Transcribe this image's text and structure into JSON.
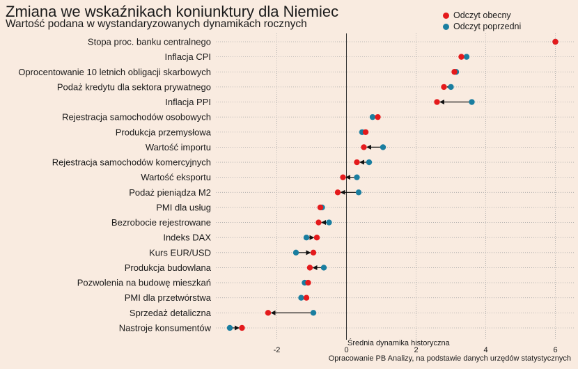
{
  "chart_data": {
    "type": "dot",
    "title": "Zmiana we wskaźnikach koniunktury dla Niemiec",
    "subtitle": "Wartość podana w wystandaryzowanych dynamikach rocznych",
    "caption": "Opracowanie PB Analizy, na podstawie danych urzędów statystycznych",
    "reference_line_label": "Średnia dynamika historyczna",
    "reference_line_value": 0,
    "x_ticks": [
      -2,
      0,
      2,
      4,
      6
    ],
    "xlim": [
      -3.6,
      6.25
    ],
    "grid": true,
    "legend_position": "top-right",
    "categories": [
      "Stopa proc. banku centralnego",
      "Inflacja CPI",
      "Oprocentowanie 10 letnich obligacji skarbowych",
      "Podaż kredytu dla sektora prywatnego",
      "Inflacja PPI",
      "Rejestracja samochodów osobowych",
      "Produkcja przemysłowa",
      "Wartość importu",
      "Rejestracja samochodów komercyjnych",
      "Wartość eksportu",
      "Podaż pieniądza M2",
      "PMI dla usług",
      "Bezrobocie rejestrowane",
      "Indeks DAX",
      "Kurs EUR/USD",
      "Produkcja budowlana",
      "Pozwolenia na budowę mieszkań",
      "PMI dla przetwórstwa",
      "Sprzedaż detaliczna",
      "Nastroje konsumentów"
    ],
    "series": [
      {
        "name": "Odczyt obecny",
        "color": "#e41a1c",
        "values": [
          6.0,
          3.3,
          3.1,
          2.8,
          2.6,
          0.9,
          0.55,
          0.5,
          0.3,
          -0.1,
          -0.25,
          -0.75,
          -0.8,
          -0.85,
          -0.95,
          -1.05,
          -1.1,
          -1.15,
          -2.25,
          -3.0
        ]
      },
      {
        "name": "Odczyt poprzedni",
        "color": "#1a7ea0",
        "values": [
          6.0,
          3.45,
          3.15,
          3.0,
          3.6,
          0.75,
          0.45,
          1.05,
          0.65,
          0.3,
          0.35,
          -0.7,
          -0.5,
          -1.15,
          -1.45,
          -0.65,
          -1.2,
          -1.3,
          -0.95,
          -3.35
        ]
      }
    ]
  }
}
